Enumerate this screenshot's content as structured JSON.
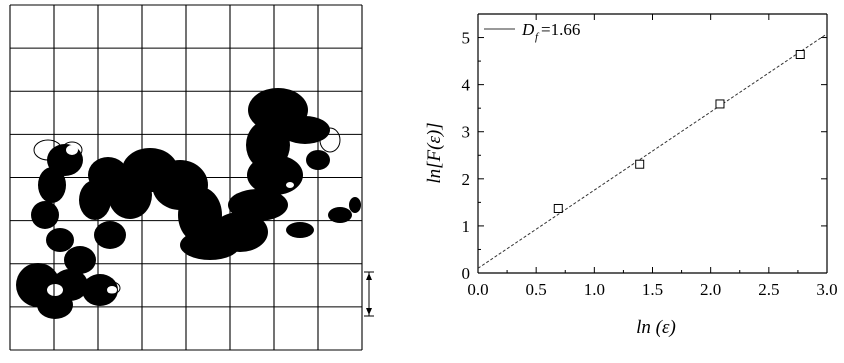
{
  "left_panel": {
    "grid_rows": 8,
    "grid_cols": 8,
    "scale_symbol": "ε"
  },
  "colors": {
    "ink": "#000000",
    "background": "#ffffff",
    "fit_line": "#333333"
  },
  "chart_data": {
    "type": "scatter",
    "xlabel": "ln (ε)",
    "ylabel": "ln[F(ε)]",
    "xlim": [
      0.0,
      3.0
    ],
    "ylim": [
      0,
      5.5
    ],
    "xticks": [
      "0.0",
      "0.5",
      "1.0",
      "1.5",
      "2.0",
      "2.5",
      "3.0"
    ],
    "yticks": [
      "0",
      "1",
      "2",
      "3",
      "4",
      "5"
    ],
    "x": [
      0.69,
      1.39,
      2.08,
      2.77
    ],
    "y": [
      1.37,
      2.31,
      3.59,
      4.64
    ],
    "marker": "open-square",
    "fit": {
      "intercept": 0.1,
      "slope": 1.66,
      "style": "dashed"
    },
    "legend": {
      "label_main": "D",
      "label_sub": "f",
      "label_value": "=1.66",
      "placement": "top-left"
    },
    "grid": false
  }
}
